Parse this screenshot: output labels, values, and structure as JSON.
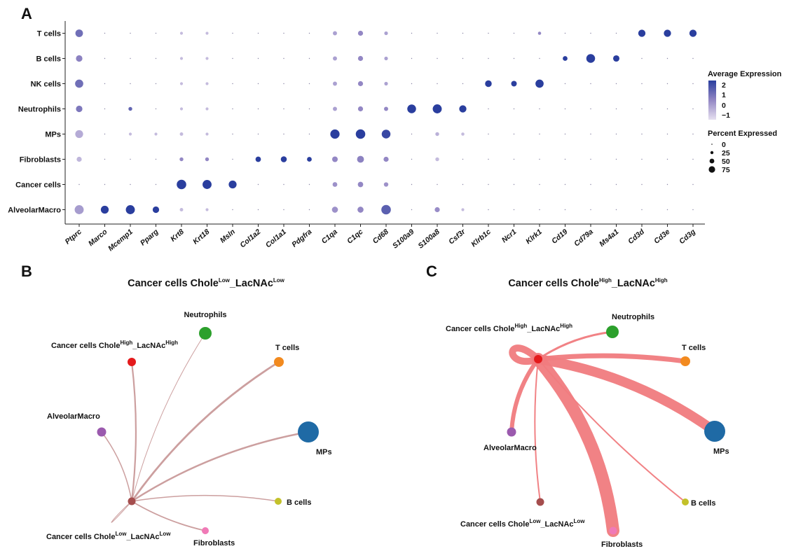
{
  "panels": {
    "a_letter": "A",
    "b_letter": "B",
    "c_letter": "C"
  },
  "colors": {
    "scale_low": "#dcd5ea",
    "scale_mid": "#9387c4",
    "scale_high": "#2a3e9e",
    "tiny_dot": "#8a86a6",
    "edge_low": "#c79595",
    "edge_high": "#f07b7e",
    "Neutrophils": "#2ca02c",
    "T cells": "#f28a1f",
    "MPs": "#1f6aa5",
    "B cells": "#c3c12a",
    "Fibroblasts": "#f07ab7",
    "AlveolarMacro": "#9b5aae",
    "Cancer cells Chole High_LacNAc High": "#e41a1c",
    "Cancer cells Chole Low_LacNAc Low": "#a54d4d"
  },
  "dotplot_legend": {
    "color_title": "Average Expression",
    "color_ticks": [
      "2",
      "1",
      "0",
      "−1"
    ],
    "size_title": "Percent Expressed",
    "size_ticks": [
      "0",
      "25",
      "50",
      "75"
    ]
  },
  "chart_data": [
    {
      "type": "dotplot",
      "rows": [
        "T cells",
        "B cells",
        "NK cells",
        "Neutrophils",
        "MPs",
        "Fibroblasts",
        "Cancer cells",
        "AlveolarMacro"
      ],
      "genes": [
        "Ptprc",
        "Marco",
        "Mcemp1",
        "Pparg",
        "Krt8",
        "Krt18",
        "Msln",
        "Col1a2",
        "Col1a1",
        "Pdgfra",
        "C1qa",
        "C1qc",
        "Cd68",
        "S100a9",
        "S100a8",
        "Csf3r",
        "Klrb1c",
        "Ncr1",
        "Klrk1",
        "Cd19",
        "Cd79a",
        "Ms4a1",
        "Cd3d",
        "Cd3e",
        "Cd3g"
      ],
      "percent_expressed": [
        [
          45,
          0,
          0,
          0,
          2,
          2,
          0,
          0,
          0,
          0,
          8,
          15,
          5,
          0,
          0,
          0,
          0,
          0,
          3,
          0,
          0,
          0,
          40,
          40,
          40
        ],
        [
          30,
          0,
          0,
          0,
          2,
          2,
          0,
          0,
          0,
          0,
          8,
          15,
          5,
          0,
          0,
          0,
          0,
          0,
          0,
          12,
          65,
          28,
          0,
          0,
          0
        ],
        [
          55,
          0,
          0,
          0,
          2,
          2,
          0,
          0,
          0,
          0,
          8,
          15,
          5,
          0,
          0,
          0,
          32,
          20,
          55,
          0,
          0,
          0,
          0,
          0,
          0
        ],
        [
          30,
          0,
          6,
          0,
          2,
          2,
          0,
          0,
          0,
          0,
          8,
          15,
          8,
          65,
          70,
          40,
          0,
          0,
          0,
          0,
          0,
          0,
          0,
          0,
          0
        ],
        [
          50,
          0,
          2,
          2,
          4,
          2,
          0,
          0,
          0,
          0,
          75,
          80,
          65,
          0,
          6,
          3,
          0,
          0,
          0,
          0,
          0,
          0,
          0,
          0,
          0
        ],
        [
          15,
          0,
          0,
          0,
          6,
          6,
          0,
          18,
          24,
          12,
          20,
          35,
          15,
          0,
          6,
          0,
          0,
          0,
          0,
          0,
          0,
          0,
          0,
          0,
          0
        ],
        [
          0,
          0,
          0,
          0,
          80,
          70,
          50,
          0,
          0,
          0,
          12,
          18,
          10,
          0,
          0,
          0,
          0,
          0,
          0,
          0,
          0,
          0,
          0,
          0,
          0
        ],
        [
          70,
          50,
          70,
          30,
          4,
          2,
          0,
          0,
          0,
          0,
          25,
          25,
          80,
          0,
          15,
          2,
          0,
          0,
          0,
          0,
          0,
          0,
          0,
          0,
          0
        ]
      ],
      "average_expression": [
        [
          1.0,
          -1,
          -1,
          -1,
          -0.5,
          -0.5,
          -1,
          -1,
          -1,
          -1,
          0,
          0.5,
          0,
          -1,
          -1,
          -1,
          -1,
          -1,
          0.5,
          -1,
          -1,
          -1,
          2.2,
          2.2,
          2.2
        ],
        [
          0.6,
          -1,
          -1,
          -1,
          -0.5,
          -0.5,
          -1,
          -1,
          -1,
          -1,
          0,
          0.5,
          0,
          -1,
          -1,
          -1,
          -1,
          -1,
          -1,
          2.0,
          2.2,
          2.2,
          -1,
          -1,
          -1
        ],
        [
          1.0,
          -1,
          -1,
          -1,
          -0.5,
          -0.5,
          -1,
          -1,
          -1,
          -1,
          0,
          0.5,
          0,
          -1,
          -1,
          -1,
          2.2,
          2.2,
          2.2,
          -1,
          -1,
          -1,
          -1,
          -1,
          -1
        ],
        [
          0.8,
          -1,
          1.2,
          -1,
          -0.5,
          -0.5,
          -1,
          -1,
          -1,
          -1,
          0,
          0.5,
          0.5,
          2.2,
          2.2,
          2.2,
          -1,
          -1,
          -1,
          -1,
          -1,
          -1,
          -1,
          -1,
          -1
        ],
        [
          -0.2,
          -1,
          -0.5,
          -0.5,
          -0.5,
          -0.5,
          -1,
          -1,
          -1,
          -1,
          2.2,
          2.2,
          1.8,
          -1,
          -0.3,
          -0.5,
          -1,
          -1,
          -1,
          -1,
          -1,
          -1,
          -1,
          -1,
          -1
        ],
        [
          -0.4,
          -1,
          -1,
          -1,
          0.5,
          0.5,
          -1,
          2.2,
          2.2,
          2.2,
          0.5,
          0.6,
          0.5,
          -1,
          -0.5,
          -1,
          -1,
          -1,
          -1,
          -1,
          -1,
          -1,
          -1,
          -1,
          -1
        ],
        [
          -1,
          -1,
          -1,
          -1,
          2.2,
          2.2,
          2.2,
          -1,
          -1,
          -1,
          0.3,
          0.5,
          0.3,
          -1,
          -1,
          -1,
          -1,
          -1,
          -1,
          -1,
          -1,
          -1,
          -1,
          -1,
          -1
        ],
        [
          0.1,
          2.2,
          2.0,
          2.2,
          -0.5,
          -0.5,
          -1,
          -1,
          -1,
          -1,
          0.3,
          0.5,
          1.3,
          -1,
          0.4,
          -0.5,
          -1,
          -1,
          -1,
          -1,
          -1,
          -1,
          -1,
          -1,
          -1
        ]
      ],
      "color_scale_range": [
        -1,
        2
      ],
      "size_scale_max": 80
    },
    {
      "type": "network",
      "title_main": "Cancer cells Chole",
      "title_sup1": "Low",
      "title_mid": "_LacNAc",
      "title_sup2": "Low",
      "source": "Cancer cells Chole Low_LacNAc Low",
      "nodes": [
        {
          "id": "Neutrophils",
          "label": "Neutrophils",
          "size": 18
        },
        {
          "id": "Cancer cells Chole High_LacNAc High",
          "label_main": "Cancer cells Chole",
          "sup1": "High",
          "label_mid": "_LacNAc",
          "sup2": "High",
          "size": 12
        },
        {
          "id": "T cells",
          "label": "T cells",
          "size": 14
        },
        {
          "id": "AlveolarMacro",
          "label": "AlveolarMacro",
          "size": 13
        },
        {
          "id": "MPs",
          "label": "MPs",
          "size": 30
        },
        {
          "id": "B cells",
          "label": "B cells",
          "size": 10
        },
        {
          "id": "Cancer cells Chole Low_LacNAc Low",
          "label_main": "Cancer cells Chole",
          "sup1": "Low",
          "label_mid": "_LacNAc",
          "sup2": "Low",
          "size": 11
        },
        {
          "id": "Fibroblasts",
          "label": "Fibroblasts",
          "size": 10
        }
      ],
      "edges": [
        {
          "target": "Neutrophils",
          "weight": 1.0
        },
        {
          "target": "Cancer cells Chole High_LacNAc High",
          "weight": 2.2
        },
        {
          "target": "T cells",
          "weight": 2.8
        },
        {
          "target": "AlveolarMacro",
          "weight": 1.5
        },
        {
          "target": "MPs",
          "weight": 2.5
        },
        {
          "target": "B cells",
          "weight": 1.5
        },
        {
          "target": "Fibroblasts",
          "weight": 1.8
        },
        {
          "target": "Cancer cells Chole Low_LacNAc Low",
          "weight": 1.0
        }
      ]
    },
    {
      "type": "network",
      "title_main": "Cancer cells Chole",
      "title_sup1": "High",
      "title_mid": "_LacNAc",
      "title_sup2": "High",
      "source": "Cancer cells Chole High_LacNAc High",
      "nodes": [
        {
          "id": "Cancer cells Chole High_LacNAc High",
          "label_main": "Cancer cells Chole",
          "sup1": "High",
          "label_mid": "_LacNAc",
          "sup2": "High",
          "size": 12
        },
        {
          "id": "Neutrophils",
          "label": "Neutrophils",
          "size": 18
        },
        {
          "id": "T cells",
          "label": "T cells",
          "size": 14
        },
        {
          "id": "AlveolarMacro",
          "label": "AlveolarMacro",
          "size": 13
        },
        {
          "id": "MPs",
          "label": "MPs",
          "size": 30
        },
        {
          "id": "B cells",
          "label": "B cells",
          "size": 10
        },
        {
          "id": "Cancer cells Chole Low_LacNAc Low",
          "label_main": "Cancer cells Chole",
          "sup1": "Low",
          "label_mid": "_LacNAc",
          "sup2": "Low",
          "size": 11
        },
        {
          "id": "Fibroblasts",
          "label": "Fibroblasts",
          "size": 11
        }
      ],
      "edges": [
        {
          "target": "Neutrophils",
          "weight": 3
        },
        {
          "target": "T cells",
          "weight": 7
        },
        {
          "target": "MPs",
          "weight": 14
        },
        {
          "target": "B cells",
          "weight": 2
        },
        {
          "target": "Fibroblasts",
          "weight": 18
        },
        {
          "target": "Cancer cells Chole Low_LacNAc Low",
          "weight": 2
        },
        {
          "target": "AlveolarMacro",
          "weight": 6
        },
        {
          "target": "Cancer cells Chole High_LacNAc High",
          "weight": 10
        }
      ]
    }
  ]
}
